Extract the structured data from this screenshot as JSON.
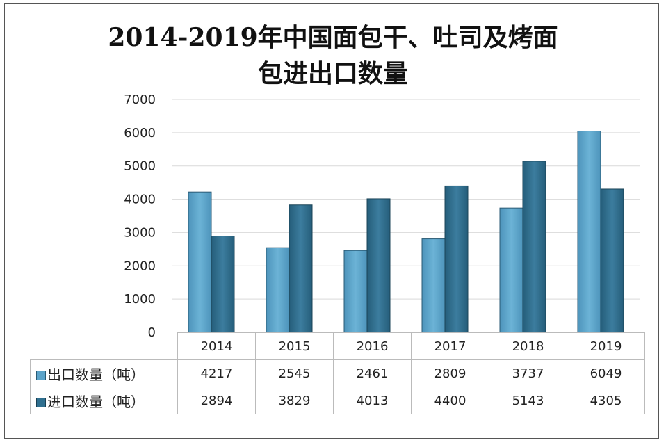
{
  "chart_data": {
    "type": "bar",
    "title": "2014-2019年中国面包干、吐司及烤面包进出口数量",
    "title_lines": [
      "2014-2019年中国面包干、吐司及烤面",
      "包进出口数量"
    ],
    "categories": [
      "2014",
      "2015",
      "2016",
      "2017",
      "2018",
      "2019"
    ],
    "series": [
      {
        "name": "出口数量（吨）",
        "values": [
          4217,
          2545,
          2461,
          2809,
          3737,
          6049
        ],
        "color": "#5ba3c9"
      },
      {
        "name": "进口数量（吨）",
        "values": [
          2894,
          3829,
          4013,
          4400,
          5143,
          4305
        ],
        "color": "#2f6f8f"
      }
    ],
    "yticks": [
      0,
      1000,
      2000,
      3000,
      4000,
      5000,
      6000,
      7000
    ],
    "ylim": [
      0,
      7000
    ],
    "xlabel": "",
    "ylabel": "",
    "grid": true,
    "legend": "data-table"
  }
}
